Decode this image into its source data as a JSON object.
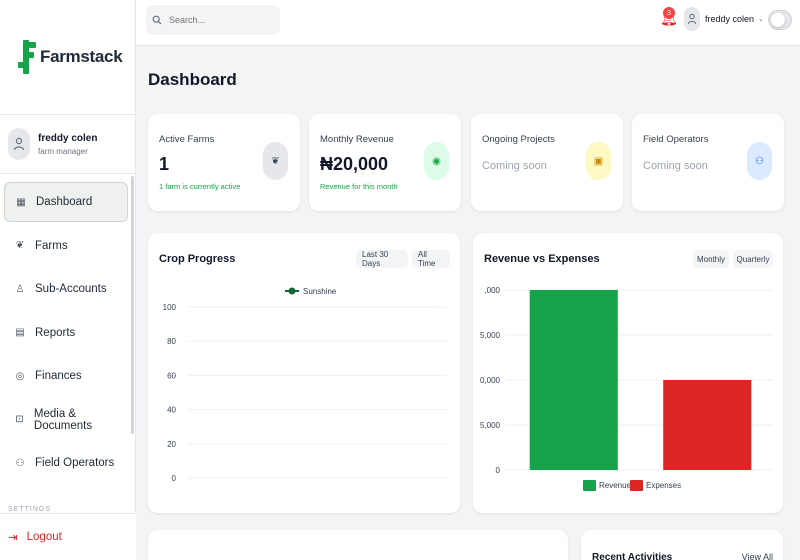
{
  "brand": {
    "name": "Farmstack",
    "color": "#16a34a"
  },
  "sidebar": {
    "user": {
      "name": "freddy colen",
      "role": "farm manager"
    },
    "items": [
      {
        "label": "Dashboard",
        "icon": "grid-icon"
      },
      {
        "label": "Farms",
        "icon": "sprout-icon"
      },
      {
        "label": "Sub-Accounts",
        "icon": "user-icon"
      },
      {
        "label": "Reports",
        "icon": "report-icon"
      },
      {
        "label": "Finances",
        "icon": "finance-icon"
      },
      {
        "label": "Media & Documents",
        "icon": "document-icon"
      },
      {
        "label": "Field Operators",
        "icon": "operators-icon"
      }
    ],
    "settings_label": "SETTINGS",
    "logout_label": "Logout"
  },
  "topbar": {
    "search_placeholder": "Search...",
    "notification_count": "3",
    "user_name": "freddy colen"
  },
  "page_title": "Dashboard",
  "stats": [
    {
      "label": "Active Farms",
      "value": "1",
      "sub": "1 farm is currently active",
      "icon": "sprout-icon",
      "icon_bg": "#e5e7eb",
      "icon_color": "#374151"
    },
    {
      "label": "Monthly Revenue",
      "value": "₦20,000",
      "sub": "Revenue for this month",
      "icon": "coin-icon",
      "icon_bg": "#dcfce7",
      "icon_color": "#16a34a"
    },
    {
      "label": "Ongoing Projects",
      "value": "Coming soon",
      "sub": "",
      "icon": "calendar-icon",
      "icon_bg": "#fef9c3",
      "icon_color": "#ca8a04"
    },
    {
      "label": "Field Operators",
      "value": "Coming soon",
      "sub": "",
      "icon": "people-icon",
      "icon_bg": "#dbeafe",
      "icon_color": "#2563eb"
    }
  ],
  "crop_progress": {
    "title": "Crop Progress",
    "filters": [
      "Last 30 Days",
      "All Time"
    ]
  },
  "revenue_expenses": {
    "title": "Revenue vs Expenses",
    "filters": [
      "Monthly",
      "Quarterly"
    ]
  },
  "bottom": {
    "recent_activities": "Recent Activities",
    "view_all": "View All"
  },
  "chart_data": [
    {
      "type": "line",
      "title": "Crop Progress",
      "series": [
        {
          "name": "Sunshine",
          "color": "#166534",
          "values": []
        }
      ],
      "y_ticks": [
        "100",
        "80",
        "60",
        "40",
        "20",
        "0"
      ],
      "ylim": [
        0,
        100
      ],
      "grid": true,
      "legend": "top-center"
    },
    {
      "type": "bar",
      "title": "Revenue vs Expenses",
      "categories": [
        "Revenue",
        "Expenses"
      ],
      "series": [
        {
          "name": "Revenue",
          "color": "#16a34a",
          "value": 20000
        },
        {
          "name": "Expenses",
          "color": "#dc2626",
          "value": 10000
        }
      ],
      "y_ticks": [
        ",000",
        "5,000",
        "0,000",
        "5,000",
        "0"
      ],
      "ylim": [
        0,
        20000
      ],
      "grid": true,
      "legend": "bottom-center"
    }
  ]
}
